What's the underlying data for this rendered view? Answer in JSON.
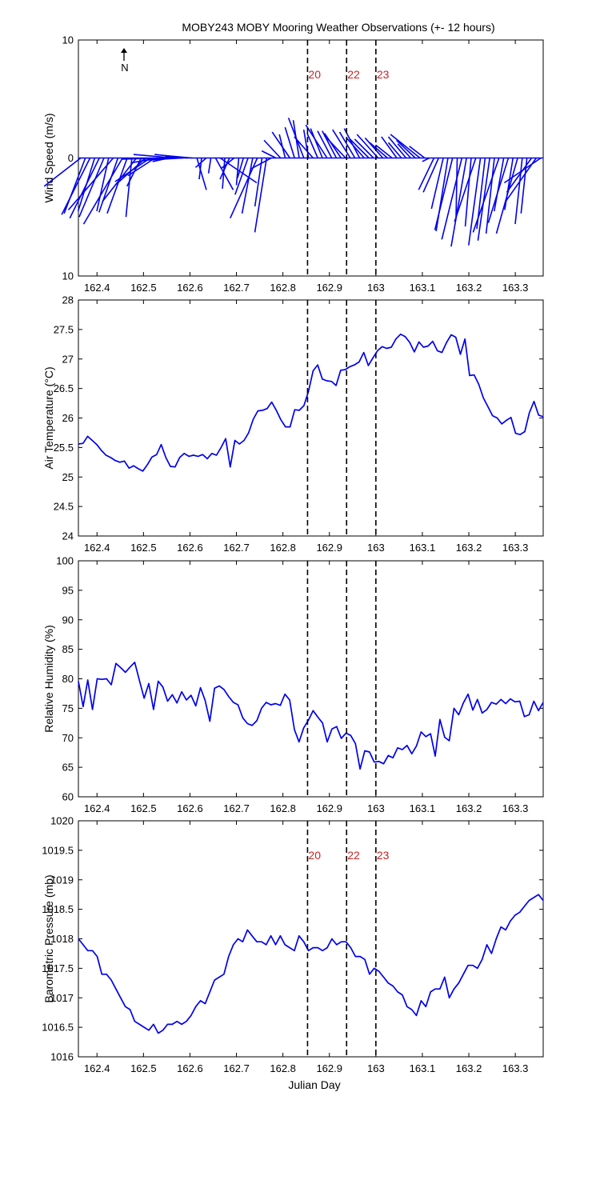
{
  "figure": {
    "title": "MOBY243 MOBY Mooring Weather Observations (+- 12 hours)",
    "x_axis_label": "Julian Day",
    "north_label": "N"
  },
  "chart_data": [
    {
      "type": "quiver",
      "name": "wind",
      "ylabel": "Wind Speed (m/s)",
      "xlim": [
        162.36,
        163.36
      ],
      "ylim": [
        -10,
        10
      ],
      "y_tick_values": [
        -10,
        0,
        10
      ],
      "y_tick_labels": [
        "10",
        "0",
        "10"
      ],
      "x_ticks": [
        162.4,
        162.5,
        162.6,
        162.7,
        162.8,
        162.9,
        163.0,
        163.1,
        163.2,
        163.3
      ],
      "x_tick_labels": [
        "162.4",
        "162.5",
        "162.6",
        "162.7",
        "162.8",
        "162.9",
        "163",
        "163.1",
        "163.2",
        "163.3"
      ],
      "event_labels_shown": true,
      "color": "#0000ee",
      "u": [
        -3.1,
        -1.8,
        -2.4,
        -1.4,
        -2.5,
        -2.1,
        -1.0,
        -3.8,
        -1.6,
        -3.3,
        -1.7,
        -0.5,
        -2.9,
        -1.2,
        -2.6,
        -3.0,
        -2.3,
        -2.4,
        -3.6,
        -1.4,
        -3.4,
        -1.1,
        -3.5,
        -2.8,
        -2.3,
        0.8,
        -0.2,
        -0.9,
        -0.2,
        1.5,
        3.1,
        -0.2,
        -0.8,
        -1.1,
        -0.2,
        -0.5,
        -1.1,
        -0.9,
        -2.3,
        -0.6,
        -1.0,
        -1.7,
        -1.2,
        -1.4,
        -0.5,
        -1.5,
        -0.8,
        -0.5,
        -1.3,
        -0.4,
        -1.6,
        -0.9,
        -1.0,
        -1.8,
        -1.2,
        -1.2,
        -1.4,
        -1.8,
        -1.5,
        -1.3,
        -1.3,
        -1.5,
        -1.6,
        -1.6,
        -1.8,
        -1.5,
        -1.5,
        -1.4,
        -1.3,
        -1.1,
        -1.5,
        -1.1,
        -1.6,
        -2.5,
        -1.3,
        -0.6,
        -1.3,
        -1.3,
        -1.0,
        -1.0,
        -1.5,
        -0.1,
        -1.7,
        -1.3,
        -0.5,
        -1.8,
        -1.0,
        -0.7,
        -1.0,
        -0.7,
        -2.2,
        -0.8,
        -1.7,
        -0.7,
        -1.8,
        -0.6,
        -0.5,
        -2.1,
        -2.6,
        -3.1
      ],
      "v": [
        -2.4,
        -4.7,
        -4.8,
        -4.5,
        -5.1,
        -5.0,
        -4.5,
        -4.4,
        -4.6,
        -5.6,
        -4.7,
        -5.0,
        -3.7,
        -2.4,
        -2.3,
        -2.0,
        -1.5,
        -0.4,
        -0.1,
        -0.3,
        0.3,
        0.1,
        -0.2,
        0.3,
        0.2,
        -2.7,
        -1.8,
        -0.8,
        -1.3,
        -2.7,
        -2.1,
        -2.6,
        -1.8,
        -0.9,
        -2.3,
        -1.7,
        -3.1,
        -4.7,
        -5.1,
        -4.1,
        -6.3,
        -0.9,
        0.6,
        1.5,
        2.0,
        2.2,
        2.6,
        3.2,
        3.4,
        2.4,
        1.8,
        2.1,
        2.5,
        2.8,
        2.3,
        2.3,
        2.1,
        1.9,
        2.4,
        2.2,
        2.5,
        1.7,
        1.6,
        1.6,
        2.0,
        1.7,
        1.3,
        1.1,
        1.8,
        1.3,
        1.8,
        1.2,
        1.5,
        2.0,
        1.0,
        -0.3,
        -2.7,
        -2.9,
        -4.3,
        -6.2,
        -6.1,
        -5.0,
        -6.9,
        -7.5,
        -5.8,
        -5.4,
        -7.4,
        -6.0,
        -7.0,
        -6.4,
        -6.3,
        -4.5,
        -5.5,
        -4.4,
        -6.4,
        -5.6,
        -4.7,
        -2.9,
        -3.7,
        -2.1
      ]
    },
    {
      "type": "line",
      "name": "air_temperature",
      "ylabel": "Air Temperature (°C)",
      "xlim": [
        162.36,
        163.36
      ],
      "ylim": [
        24,
        28
      ],
      "y_tick_values": [
        24,
        24.5,
        25,
        25.5,
        26,
        26.5,
        27,
        27.5,
        28
      ],
      "y_tick_labels": [
        "24",
        "24.5",
        "25",
        "25.5",
        "26",
        "26.5",
        "27",
        "27.5",
        "28"
      ],
      "x_ticks": [
        162.4,
        162.5,
        162.6,
        162.7,
        162.8,
        162.9,
        163.0,
        163.1,
        163.2,
        163.3
      ],
      "x_tick_labels": [
        "162.4",
        "162.5",
        "162.6",
        "162.7",
        "162.8",
        "162.9",
        "163",
        "163.1",
        "163.2",
        "163.3"
      ],
      "event_labels_shown": false,
      "color": "#0000ee",
      "values": [
        25.56,
        25.57,
        25.69,
        25.62,
        25.55,
        25.45,
        25.37,
        25.33,
        25.28,
        25.25,
        25.27,
        25.15,
        25.19,
        25.14,
        25.1,
        25.21,
        25.34,
        25.38,
        25.55,
        25.33,
        25.18,
        25.17,
        25.33,
        25.4,
        25.35,
        25.37,
        25.35,
        25.38,
        25.31,
        25.4,
        25.37,
        25.5,
        25.65,
        25.17,
        25.62,
        25.56,
        25.62,
        25.75,
        25.98,
        26.12,
        26.13,
        26.16,
        26.27,
        26.13,
        25.97,
        25.85,
        25.85,
        26.14,
        26.13,
        26.21,
        26.45,
        26.8,
        26.9,
        26.66,
        26.63,
        26.62,
        26.55,
        26.81,
        26.82,
        26.87,
        26.9,
        26.95,
        27.11,
        26.89,
        27.02,
        27.14,
        27.21,
        27.18,
        27.2,
        27.34,
        27.42,
        27.38,
        27.28,
        27.12,
        27.29,
        27.2,
        27.22,
        27.3,
        27.14,
        27.11,
        27.28,
        27.41,
        27.37,
        27.08,
        27.34,
        26.72,
        26.73,
        26.57,
        26.34,
        26.19,
        26.04,
        26.0,
        25.9,
        25.96,
        26.01,
        25.74,
        25.72,
        25.77,
        26.09,
        26.28,
        26.05,
        26.02
      ]
    },
    {
      "type": "line",
      "name": "relative_humidity",
      "ylabel": "Relative Humidity (%)",
      "xlim": [
        162.36,
        163.36
      ],
      "ylim": [
        60,
        100
      ],
      "y_tick_values": [
        60,
        65,
        70,
        75,
        80,
        85,
        90,
        95,
        100
      ],
      "y_tick_labels": [
        "60",
        "65",
        "70",
        "75",
        "80",
        "85",
        "90",
        "95",
        "100"
      ],
      "x_ticks": [
        162.4,
        162.5,
        162.6,
        162.7,
        162.8,
        162.9,
        163.0,
        163.1,
        163.2,
        163.3
      ],
      "x_tick_labels": [
        "162.4",
        "162.5",
        "162.6",
        "162.7",
        "162.8",
        "162.9",
        "163",
        "163.1",
        "163.2",
        "163.3"
      ],
      "event_labels_shown": false,
      "color": "#0000ee",
      "values": [
        79.6,
        75.3,
        79.8,
        74.8,
        80.0,
        79.9,
        80.0,
        79.0,
        82.6,
        81.9,
        81.1,
        82.0,
        82.8,
        79.7,
        76.7,
        79.2,
        74.8,
        79.6,
        78.6,
        76.2,
        77.3,
        75.9,
        77.8,
        76.4,
        77.2,
        75.4,
        78.5,
        76.3,
        72.8,
        78.4,
        78.8,
        78.2,
        77.0,
        76.0,
        75.6,
        73.4,
        72.4,
        72.1,
        72.9,
        75.0,
        76.0,
        75.6,
        75.8,
        75.5,
        77.4,
        76.4,
        71.4,
        69.3,
        71.7,
        73.0,
        74.6,
        73.5,
        72.5,
        69.3,
        71.5,
        71.9,
        69.9,
        70.8,
        70.4,
        69.0,
        64.7,
        67.8,
        67.6,
        65.9,
        66.0,
        65.6,
        67.0,
        66.6,
        68.3,
        68.0,
        68.7,
        67.3,
        68.6,
        71.0,
        70.2,
        70.7,
        66.9,
        73.1,
        70.1,
        69.5,
        75.0,
        73.9,
        75.9,
        77.4,
        74.7,
        76.5,
        74.2,
        74.8,
        76.0,
        75.7,
        76.5,
        75.8,
        76.6,
        76.1,
        76.2,
        73.6,
        73.9,
        76.2,
        74.6,
        76.0
      ]
    },
    {
      "type": "line",
      "name": "barometric_pressure",
      "ylabel": "Barometric Pressure (mb)",
      "xlabel": "Julian Day",
      "xlim": [
        162.36,
        163.36
      ],
      "ylim": [
        1016,
        1020
      ],
      "y_tick_values": [
        1016,
        1016.5,
        1017,
        1017.5,
        1018,
        1018.5,
        1019,
        1019.5,
        1020
      ],
      "y_tick_labels": [
        "1016",
        "1016.5",
        "1017",
        "1017.5",
        "1018",
        "1018.5",
        "1019",
        "1019.5",
        "1020"
      ],
      "x_ticks": [
        162.4,
        162.5,
        162.6,
        162.7,
        162.8,
        162.9,
        163.0,
        163.1,
        163.2,
        163.3
      ],
      "x_tick_labels": [
        "162.4",
        "162.5",
        "162.6",
        "162.7",
        "162.8",
        "162.9",
        "163",
        "163.1",
        "163.2",
        "163.3"
      ],
      "event_labels_shown": true,
      "color": "#0000ee",
      "values": [
        1018.0,
        1017.9,
        1017.8,
        1017.8,
        1017.7,
        1017.4,
        1017.4,
        1017.3,
        1017.15,
        1017.0,
        1016.85,
        1016.8,
        1016.6,
        1016.55,
        1016.5,
        1016.45,
        1016.55,
        1016.4,
        1016.45,
        1016.55,
        1016.55,
        1016.6,
        1016.55,
        1016.6,
        1016.7,
        1016.85,
        1016.95,
        1016.9,
        1017.1,
        1017.3,
        1017.35,
        1017.4,
        1017.7,
        1017.9,
        1018.0,
        1017.95,
        1018.15,
        1018.05,
        1017.95,
        1017.95,
        1017.9,
        1018.05,
        1017.9,
        1018.05,
        1017.9,
        1017.85,
        1017.8,
        1018.05,
        1017.95,
        1017.8,
        1017.85,
        1017.85,
        1017.8,
        1017.85,
        1018.0,
        1017.9,
        1017.95,
        1017.95,
        1017.85,
        1017.7,
        1017.7,
        1017.65,
        1017.4,
        1017.5,
        1017.45,
        1017.35,
        1017.25,
        1017.2,
        1017.1,
        1017.05,
        1016.85,
        1016.8,
        1016.7,
        1016.95,
        1016.85,
        1017.1,
        1017.15,
        1017.15,
        1017.35,
        1017.0,
        1017.15,
        1017.25,
        1017.4,
        1017.55,
        1017.55,
        1017.5,
        1017.65,
        1017.9,
        1017.75,
        1018.0,
        1018.2,
        1018.15,
        1018.3,
        1018.4,
        1018.45,
        1018.55,
        1018.65,
        1018.7,
        1018.75,
        1018.65
      ]
    }
  ],
  "events": [
    {
      "day": 162.853,
      "label": "20"
    },
    {
      "day": 162.937,
      "label": "22"
    },
    {
      "day": 163.0,
      "label": "23"
    }
  ]
}
